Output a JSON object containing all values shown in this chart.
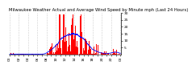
{
  "title": "Milwaukee Weather Actual and Average Wind Speed by Minute mph (Last 24 Hours)",
  "n_points": 1440,
  "background_color": "#ffffff",
  "bar_color": "#ff0000",
  "line_color": "#0000ff",
  "ylim": [
    0,
    30
  ],
  "yticks": [
    5,
    10,
    15,
    20,
    25,
    30
  ],
  "grid_color": "#999999",
  "title_fontsize": 3.8,
  "tick_fontsize": 3.2,
  "bar_width": 1.0
}
